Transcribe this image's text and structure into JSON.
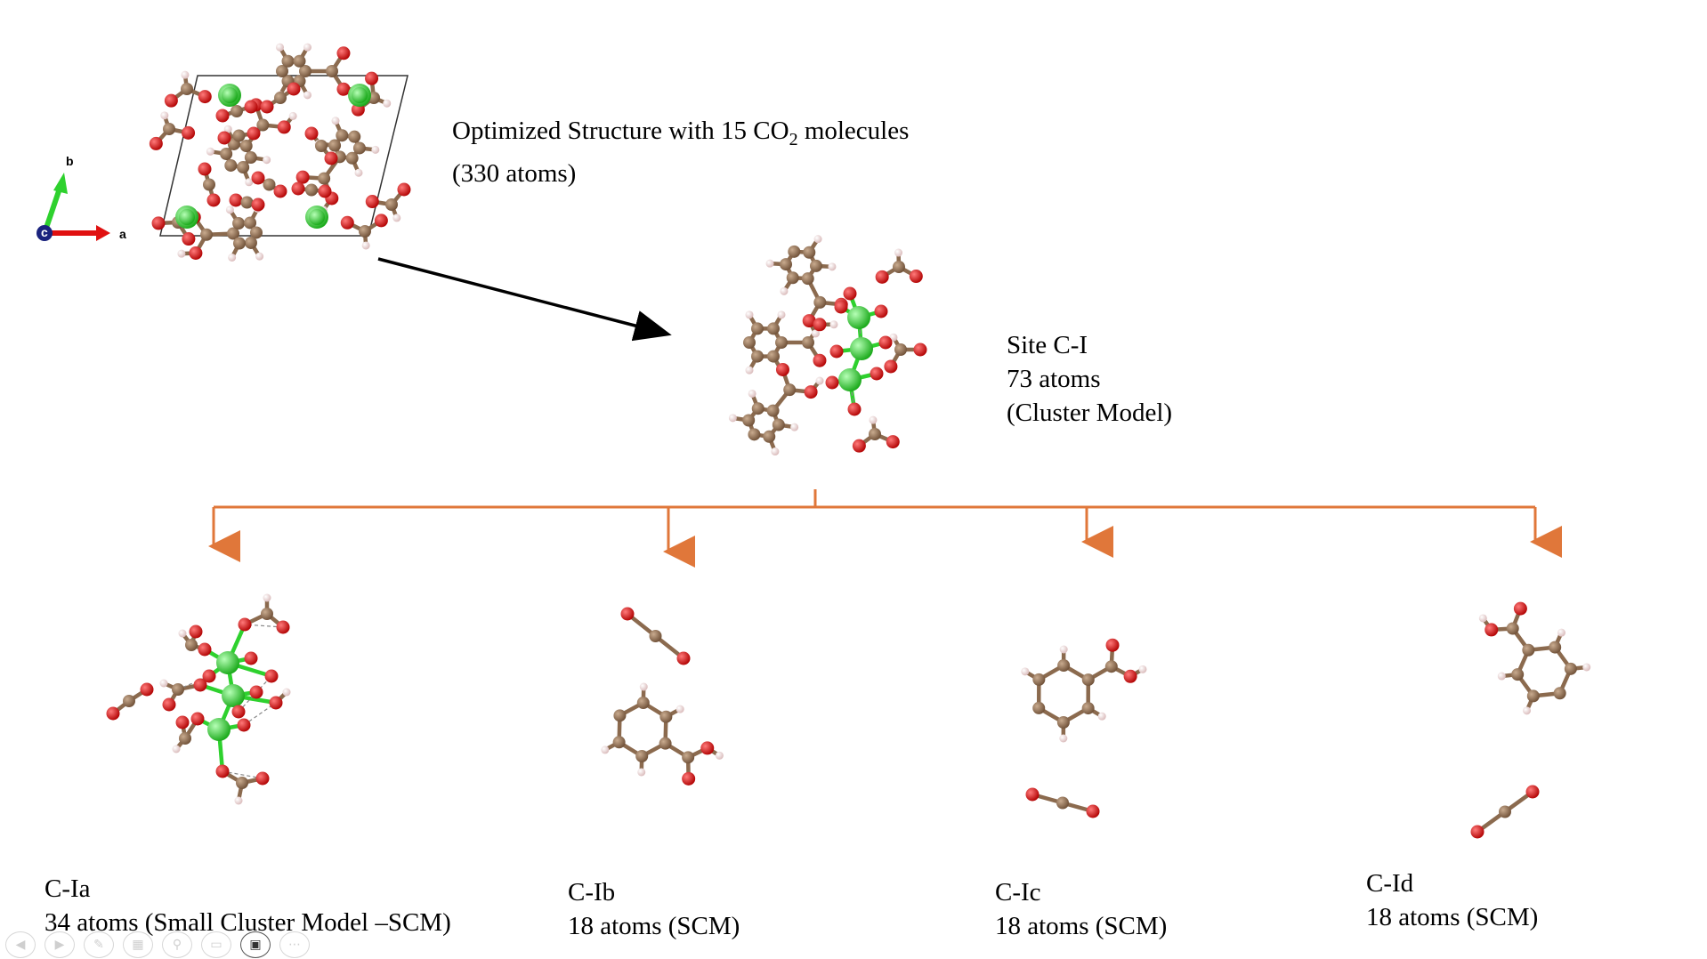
{
  "title_block": {
    "line1_prefix": "Optimized Structure with 15 CO",
    "line1_sub": "2",
    "line1_suffix": " molecules",
    "line2": "(330 atoms)"
  },
  "axes_indicator": {
    "a": "a",
    "b": "b",
    "c": "c"
  },
  "site": {
    "name": "Site C-I",
    "atoms": "73 atoms",
    "model": "(Cluster Model)"
  },
  "fragments": [
    {
      "name": "C-Ia",
      "desc": "34 atoms (Small Cluster Model –SCM)"
    },
    {
      "name": "C-Ib",
      "desc": "18 atoms (SCM)"
    },
    {
      "name": "C-Ic",
      "desc": "18 atoms (SCM)"
    },
    {
      "name": "C-Id",
      "desc": "18 atoms (SCM)"
    }
  ],
  "colors": {
    "carbon": "#8b6a4e",
    "oxygen": "#e01010",
    "hydrogen": "#f2d6d6",
    "calcium": "#2ed12e",
    "bond": "#8b6a4e",
    "tree_line": "#e0773a",
    "arrow": "#000000"
  },
  "toolbar": {
    "icons": [
      "prev-icon",
      "next-icon",
      "pen-icon",
      "slides-icon",
      "zoom-icon",
      "subtitle-icon",
      "camera-icon",
      "more-icon"
    ]
  }
}
